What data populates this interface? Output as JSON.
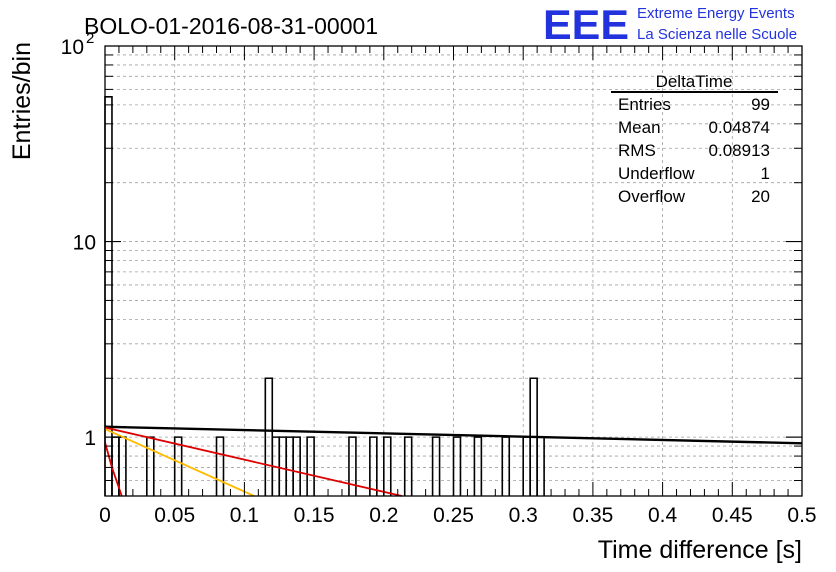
{
  "header": {
    "run_title": "BOLO-01-2016-08-31-00001",
    "logo_text": "EEE",
    "logo_line1": "Extreme Energy Events",
    "logo_line2": "La Scienza nelle Scuole"
  },
  "stats": {
    "title": "DeltaTime",
    "rows": [
      {
        "label": "Entries",
        "value": "99"
      },
      {
        "label": "Mean",
        "value": "0.04874"
      },
      {
        "label": "RMS",
        "value": "0.08913"
      },
      {
        "label": "Underflow",
        "value": "1"
      },
      {
        "label": "Overflow",
        "value": "20"
      }
    ]
  },
  "colors": {
    "histogram": "#000000",
    "fit_black": "#000000",
    "fit_red": "#dd0000",
    "fit_orange": "#ffbb00",
    "grid": "#a0a0a0"
  },
  "chart_data": {
    "type": "bar",
    "xlabel": "Time difference [s]",
    "ylabel": "Entries/bin",
    "xlim": [
      0,
      0.5
    ],
    "ylim": [
      0.5,
      100
    ],
    "yscale": "log",
    "grid": true,
    "xticks": [
      "0",
      "0.05",
      "0.1",
      "0.15",
      "0.2",
      "0.25",
      "0.3",
      "0.35",
      "0.4",
      "0.45",
      "0.5"
    ],
    "yticks": [
      "1",
      "10",
      "10^2"
    ],
    "bin_width": 0.005,
    "bins": [
      {
        "x": 0.0,
        "y": 55
      },
      {
        "x": 0.005,
        "y": 1
      },
      {
        "x": 0.01,
        "y": 1
      },
      {
        "x": 0.03,
        "y": 1
      },
      {
        "x": 0.05,
        "y": 1
      },
      {
        "x": 0.08,
        "y": 1
      },
      {
        "x": 0.115,
        "y": 2
      },
      {
        "x": 0.12,
        "y": 1
      },
      {
        "x": 0.125,
        "y": 1
      },
      {
        "x": 0.13,
        "y": 1
      },
      {
        "x": 0.135,
        "y": 1
      },
      {
        "x": 0.145,
        "y": 1
      },
      {
        "x": 0.175,
        "y": 1
      },
      {
        "x": 0.19,
        "y": 1
      },
      {
        "x": 0.2,
        "y": 1
      },
      {
        "x": 0.215,
        "y": 1
      },
      {
        "x": 0.235,
        "y": 1
      },
      {
        "x": 0.25,
        "y": 1
      },
      {
        "x": 0.265,
        "y": 1
      },
      {
        "x": 0.285,
        "y": 1
      },
      {
        "x": 0.3,
        "y": 1
      },
      {
        "x": 0.305,
        "y": 2
      },
      {
        "x": 0.31,
        "y": 1
      }
    ],
    "fit_lines": [
      {
        "color": "black",
        "points": [
          [
            0,
            1.13
          ],
          [
            0.5,
            0.93
          ]
        ]
      },
      {
        "color": "red",
        "points": [
          [
            0,
            1.12
          ],
          [
            0.213,
            0.5
          ]
        ]
      },
      {
        "color": "orange",
        "points": [
          [
            0,
            1.1
          ],
          [
            0.107,
            0.5
          ]
        ]
      },
      {
        "color": "red",
        "points": [
          [
            0,
            0.94
          ],
          [
            0.005,
            0.7
          ],
          [
            0.012,
            0.5
          ]
        ]
      }
    ]
  }
}
